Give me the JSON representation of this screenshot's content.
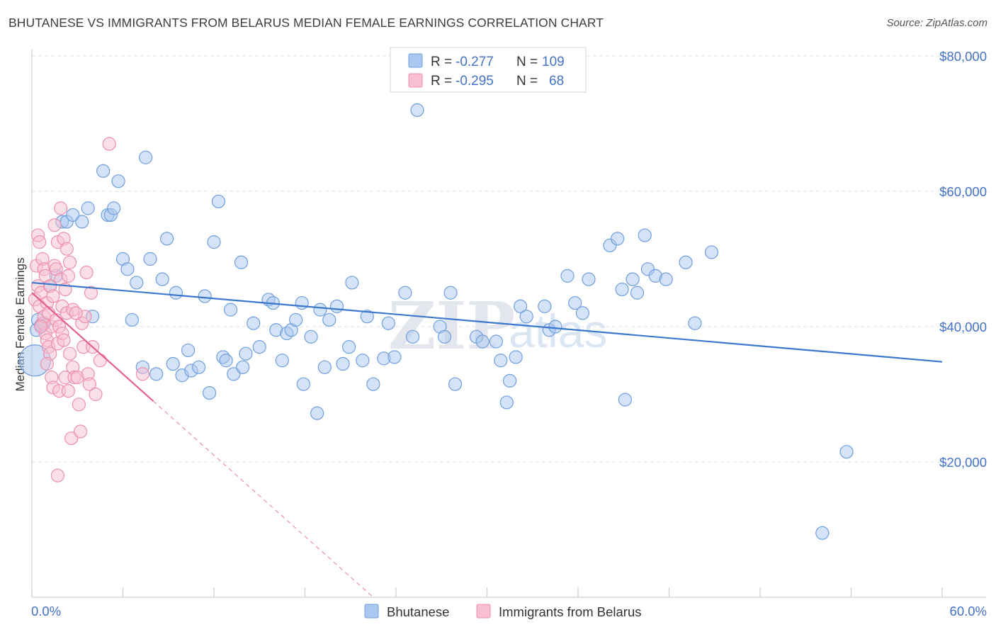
{
  "header": {
    "title": "BHUTANESE VS IMMIGRANTS FROM BELARUS MEDIAN FEMALE EARNINGS CORRELATION CHART",
    "source": "Source: ZipAtlas.com"
  },
  "colors": {
    "blue_fill": "#a9c7ef",
    "blue_stroke": "#6f9fdc",
    "blue_line": "#3a78cc",
    "pink_fill": "#f7bfd0",
    "pink_stroke": "#ec8fae",
    "pink_line": "#e5628f",
    "grid": "#e2e2e2",
    "axis_text": "#4472c4"
  },
  "legend": {
    "rows": [
      {
        "r_label": "R =",
        "r_value": "-0.277",
        "n_label": "N =",
        "n_value": "109"
      },
      {
        "r_label": "R =",
        "r_value": "-0.295",
        "n_label": "N =",
        "n_value": "68"
      }
    ]
  },
  "watermark": {
    "zip": "ZIP",
    "atlas": "atlas"
  },
  "chart_data": {
    "type": "scatter",
    "title": "BHUTANESE VS IMMIGRANTS FROM BELARUS MEDIAN FEMALE EARNINGS CORRELATION CHART",
    "xlabel": "",
    "ylabel": "Median Female Earnings",
    "xlim": [
      0,
      60
    ],
    "ylim": [
      0,
      80000
    ],
    "x_tick_labels": {
      "left": "0.0%",
      "right": "60.0%"
    },
    "y_ticks": [
      {
        "value": 20000,
        "label": "$20,000"
      },
      {
        "value": 40000,
        "label": "$40,000"
      },
      {
        "value": 60000,
        "label": "$60,000"
      },
      {
        "value": 80000,
        "label": "$80,000"
      }
    ],
    "grid": true,
    "legend_position": "top-center",
    "series": [
      {
        "name": "Bhutanese",
        "r": -0.277,
        "n": 109,
        "trend": {
          "x0": 0,
          "y0": 46500,
          "x1": 60,
          "y1": 34800
        },
        "points": [
          [
            0.3,
            39500
          ],
          [
            0.4,
            41000
          ],
          [
            0.6,
            40200
          ],
          [
            0.8,
            40500
          ],
          [
            1.2,
            46000
          ],
          [
            1.6,
            47500
          ],
          [
            2.0,
            55500
          ],
          [
            2.3,
            55500
          ],
          [
            2.7,
            56500
          ],
          [
            3.3,
            55500
          ],
          [
            3.7,
            57500
          ],
          [
            4.0,
            41500
          ],
          [
            4.7,
            63000
          ],
          [
            5.0,
            56500
          ],
          [
            5.2,
            56500
          ],
          [
            5.4,
            57500
          ],
          [
            5.7,
            61500
          ],
          [
            6.0,
            50000
          ],
          [
            6.3,
            48500
          ],
          [
            6.6,
            41000
          ],
          [
            6.9,
            46500
          ],
          [
            7.3,
            34000
          ],
          [
            7.5,
            65000
          ],
          [
            7.8,
            50000
          ],
          [
            8.2,
            33000
          ],
          [
            8.6,
            47000
          ],
          [
            8.9,
            53000
          ],
          [
            9.3,
            34500
          ],
          [
            9.5,
            45000
          ],
          [
            9.9,
            32800
          ],
          [
            10.3,
            36500
          ],
          [
            10.5,
            33500
          ],
          [
            11.0,
            34000
          ],
          [
            11.4,
            44500
          ],
          [
            11.7,
            30200
          ],
          [
            12.0,
            52500
          ],
          [
            12.3,
            58500
          ],
          [
            12.6,
            35500
          ],
          [
            12.8,
            35000
          ],
          [
            13.1,
            42500
          ],
          [
            13.3,
            33000
          ],
          [
            13.8,
            49500
          ],
          [
            13.9,
            34000
          ],
          [
            14.1,
            36000
          ],
          [
            14.6,
            40500
          ],
          [
            15.0,
            37000
          ],
          [
            15.6,
            44000
          ],
          [
            15.9,
            43500
          ],
          [
            16.1,
            39500
          ],
          [
            16.5,
            35000
          ],
          [
            16.8,
            39000
          ],
          [
            17.1,
            39500
          ],
          [
            17.4,
            41000
          ],
          [
            17.8,
            43500
          ],
          [
            17.9,
            31500
          ],
          [
            18.4,
            38500
          ],
          [
            18.8,
            27200
          ],
          [
            19.0,
            42500
          ],
          [
            19.3,
            34000
          ],
          [
            19.6,
            41000
          ],
          [
            20.1,
            43000
          ],
          [
            20.5,
            34500
          ],
          [
            20.9,
            37000
          ],
          [
            21.1,
            46500
          ],
          [
            21.8,
            35000
          ],
          [
            22.1,
            41500
          ],
          [
            22.5,
            31500
          ],
          [
            23.2,
            35300
          ],
          [
            23.5,
            40500
          ],
          [
            23.9,
            35500
          ],
          [
            24.6,
            45000
          ],
          [
            25.1,
            38500
          ],
          [
            25.4,
            72000
          ],
          [
            26.9,
            40000
          ],
          [
            27.2,
            38500
          ],
          [
            27.6,
            45000
          ],
          [
            27.9,
            31500
          ],
          [
            29.3,
            38500
          ],
          [
            29.7,
            37800
          ],
          [
            30.6,
            37800
          ],
          [
            30.9,
            35000
          ],
          [
            31.3,
            28800
          ],
          [
            31.5,
            32000
          ],
          [
            31.9,
            35500
          ],
          [
            32.2,
            43000
          ],
          [
            32.6,
            41500
          ],
          [
            33.8,
            43000
          ],
          [
            34.1,
            39500
          ],
          [
            34.5,
            40000
          ],
          [
            35.3,
            47500
          ],
          [
            35.8,
            43500
          ],
          [
            36.3,
            42000
          ],
          [
            36.7,
            47000
          ],
          [
            38.1,
            52000
          ],
          [
            38.6,
            53000
          ],
          [
            38.9,
            45500
          ],
          [
            39.1,
            29200
          ],
          [
            39.6,
            47000
          ],
          [
            39.9,
            45000
          ],
          [
            40.4,
            53500
          ],
          [
            40.6,
            48500
          ],
          [
            41.1,
            47500
          ],
          [
            41.8,
            47000
          ],
          [
            43.1,
            49500
          ],
          [
            43.7,
            40500
          ],
          [
            44.8,
            51000
          ],
          [
            53.7,
            21500
          ],
          [
            52.1,
            9500
          ],
          [
            0.2,
            35000
          ]
        ]
      },
      {
        "name": "Immigrants from Belarus",
        "r": -0.295,
        "n": 68,
        "trend": {
          "x0": 0,
          "y0": 45000,
          "x1": 8,
          "y1": 29000
        },
        "trend_dashed_extension": {
          "x0": 8,
          "y0": 29000,
          "x1": 22.5,
          "y1": 0
        },
        "points": [
          [
            0.2,
            44000
          ],
          [
            0.3,
            49000
          ],
          [
            0.4,
            53500
          ],
          [
            0.4,
            46000
          ],
          [
            0.5,
            52500
          ],
          [
            0.5,
            43000
          ],
          [
            0.6,
            45000
          ],
          [
            0.7,
            50000
          ],
          [
            0.7,
            40500
          ],
          [
            0.8,
            48500
          ],
          [
            0.8,
            41500
          ],
          [
            0.9,
            47500
          ],
          [
            0.9,
            39000
          ],
          [
            1.0,
            43500
          ],
          [
            1.0,
            38000
          ],
          [
            1.1,
            42000
          ],
          [
            1.1,
            37000
          ],
          [
            1.2,
            46000
          ],
          [
            1.2,
            36000
          ],
          [
            1.3,
            40000
          ],
          [
            1.3,
            32500
          ],
          [
            1.4,
            44500
          ],
          [
            1.4,
            31000
          ],
          [
            1.5,
            49000
          ],
          [
            1.5,
            55000
          ],
          [
            1.6,
            48500
          ],
          [
            1.6,
            41000
          ],
          [
            1.7,
            52500
          ],
          [
            1.7,
            37500
          ],
          [
            1.8,
            40000
          ],
          [
            1.8,
            30500
          ],
          [
            1.9,
            57500
          ],
          [
            1.9,
            47000
          ],
          [
            2.0,
            43000
          ],
          [
            2.0,
            39000
          ],
          [
            2.1,
            53000
          ],
          [
            2.1,
            38000
          ],
          [
            2.2,
            45500
          ],
          [
            2.2,
            32500
          ],
          [
            2.3,
            51500
          ],
          [
            2.3,
            42000
          ],
          [
            2.4,
            47500
          ],
          [
            2.4,
            30500
          ],
          [
            2.5,
            49500
          ],
          [
            2.5,
            36000
          ],
          [
            2.6,
            23500
          ],
          [
            2.7,
            42500
          ],
          [
            2.7,
            34000
          ],
          [
            2.8,
            32500
          ],
          [
            3.0,
            32500
          ],
          [
            3.1,
            28500
          ],
          [
            3.2,
            24500
          ],
          [
            3.3,
            40500
          ],
          [
            3.4,
            37000
          ],
          [
            3.5,
            41500
          ],
          [
            3.6,
            48000
          ],
          [
            3.7,
            33000
          ],
          [
            3.8,
            31500
          ],
          [
            3.9,
            45000
          ],
          [
            4.0,
            37000
          ],
          [
            4.2,
            30000
          ],
          [
            4.5,
            35000
          ],
          [
            5.1,
            67000
          ],
          [
            1.7,
            18000
          ],
          [
            0.6,
            40000
          ],
          [
            1.0,
            34500
          ],
          [
            7.3,
            33000
          ],
          [
            2.9,
            42000
          ]
        ]
      }
    ]
  },
  "bottom_legend": {
    "items": [
      {
        "label": "Bhutanese"
      },
      {
        "label": "Immigrants from Belarus"
      }
    ]
  }
}
